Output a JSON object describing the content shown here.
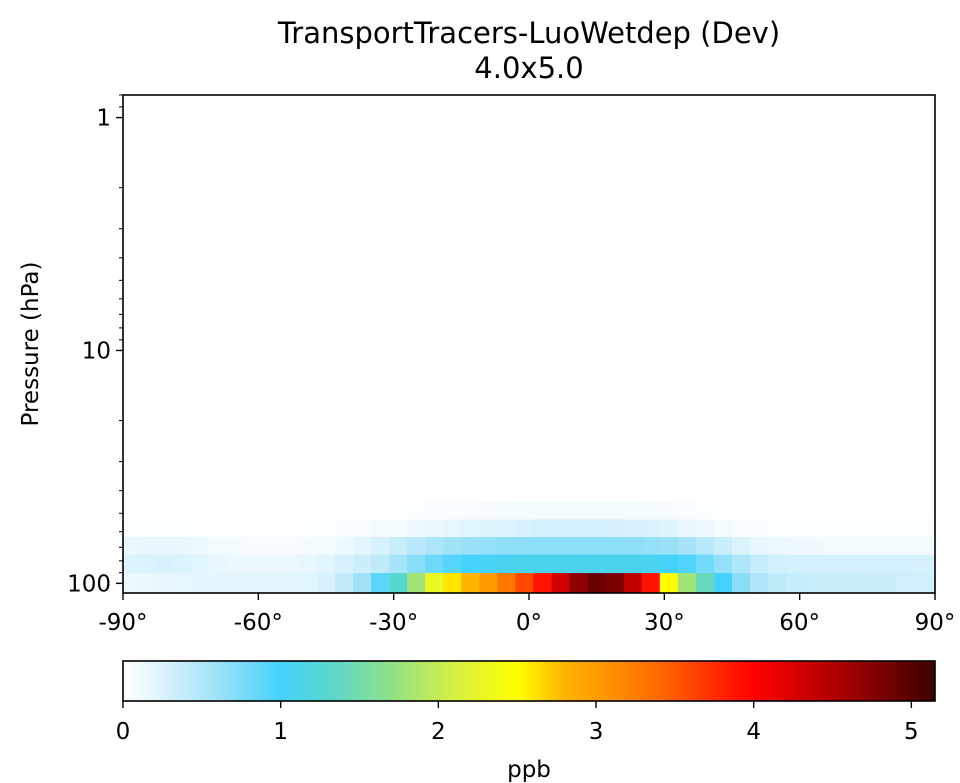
{
  "chart_data": {
    "type": "heatmap",
    "title": "TransportTracers-LuoWetdep (Dev)",
    "subtitle": "4.0x5.0",
    "xlabel": "",
    "ylabel": "Pressure (hPa)",
    "x_ticks": [
      "-90°",
      "-60°",
      "-30°",
      "0°",
      "30°",
      "60°",
      "90°"
    ],
    "x_tick_values": [
      -90,
      -60,
      -30,
      0,
      30,
      60,
      90
    ],
    "xlim": [
      -90,
      90
    ],
    "y_scale": "log",
    "y_inverted": true,
    "y_ticks": [
      "1",
      "10",
      "100"
    ],
    "y_tick_values": [
      1,
      10,
      100
    ],
    "ylim": [
      110,
      0.8
    ],
    "lat_edges": [
      -90,
      -87,
      -83,
      -79,
      -75,
      -71,
      -67,
      -63,
      -59,
      -55,
      -51,
      -47,
      -43,
      -39,
      -35,
      -31,
      -27,
      -23,
      -19,
      -15,
      -11,
      -7,
      -3,
      1,
      5,
      9,
      13,
      17,
      21,
      25,
      29,
      33,
      37,
      41,
      45,
      49,
      53,
      57,
      61,
      65,
      69,
      73,
      77,
      81,
      85,
      89,
      90
    ],
    "pressure_edges": [
      110,
      90,
      75,
      63,
      53,
      44.5
    ],
    "values": [
      [
        0.14,
        0.16,
        0.18,
        0.19,
        0.2,
        0.2,
        0.2,
        0.2,
        0.2,
        0.2,
        0.22,
        0.28,
        0.4,
        0.6,
        0.9,
        1.3,
        1.8,
        2.3,
        2.6,
        2.8,
        3.0,
        3.3,
        3.6,
        3.9,
        4.3,
        4.7,
        4.9,
        4.8,
        4.4,
        3.9,
        2.5,
        1.8,
        1.4,
        1.0,
        0.7,
        0.5,
        0.42,
        0.38,
        0.36,
        0.36,
        0.36,
        0.35,
        0.34,
        0.33,
        0.32,
        0.3
      ],
      [
        0.25,
        0.26,
        0.27,
        0.26,
        0.22,
        0.18,
        0.15,
        0.15,
        0.15,
        0.15,
        0.18,
        0.22,
        0.28,
        0.34,
        0.42,
        0.55,
        0.7,
        0.82,
        0.92,
        1.0,
        1.05,
        1.08,
        1.1,
        1.1,
        1.1,
        1.1,
        1.1,
        1.1,
        1.1,
        1.08,
        1.02,
        0.95,
        0.8,
        0.65,
        0.5,
        0.38,
        0.32,
        0.3,
        0.3,
        0.3,
        0.3,
        0.3,
        0.3,
        0.3,
        0.29,
        0.28
      ],
      [
        0.16,
        0.17,
        0.18,
        0.17,
        0.14,
        0.1,
        0.08,
        0.07,
        0.07,
        0.07,
        0.08,
        0.1,
        0.14,
        0.2,
        0.28,
        0.36,
        0.45,
        0.52,
        0.58,
        0.62,
        0.65,
        0.67,
        0.68,
        0.68,
        0.68,
        0.68,
        0.68,
        0.68,
        0.67,
        0.65,
        0.62,
        0.55,
        0.45,
        0.35,
        0.25,
        0.18,
        0.14,
        0.12,
        0.11,
        0.1,
        0.1,
        0.1,
        0.1,
        0.1,
        0.1,
        0.1
      ],
      [
        0.03,
        0.03,
        0.03,
        0.03,
        0.02,
        0.02,
        0.02,
        0.02,
        0.02,
        0.02,
        0.02,
        0.03,
        0.04,
        0.06,
        0.08,
        0.1,
        0.13,
        0.16,
        0.19,
        0.22,
        0.24,
        0.26,
        0.28,
        0.3,
        0.3,
        0.3,
        0.3,
        0.29,
        0.28,
        0.26,
        0.23,
        0.18,
        0.13,
        0.09,
        0.06,
        0.04,
        0.03,
        0.03,
        0.03,
        0.03,
        0.03,
        0.03,
        0.03,
        0.03,
        0.03,
        0.03
      ],
      [
        0.0,
        0.0,
        0.0,
        0.0,
        0.0,
        0.0,
        0.0,
        0.0,
        0.0,
        0.0,
        0.0,
        0.0,
        0.0,
        0.01,
        0.01,
        0.02,
        0.03,
        0.04,
        0.05,
        0.06,
        0.07,
        0.08,
        0.09,
        0.1,
        0.1,
        0.1,
        0.1,
        0.1,
        0.09,
        0.08,
        0.07,
        0.05,
        0.03,
        0.02,
        0.01,
        0.01,
        0.0,
        0.0,
        0.0,
        0.0,
        0.0,
        0.0,
        0.0,
        0.0,
        0.0,
        0.0
      ]
    ],
    "colorbar": {
      "label": "ppb",
      "min": 0,
      "max": 5.15,
      "ticks": [
        0,
        1,
        2,
        3,
        4,
        5
      ],
      "tick_labels": [
        "0",
        "1",
        "2",
        "3",
        "4",
        "5"
      ],
      "colormap_stops": [
        {
          "v": 0.0,
          "c": "#ffffff"
        },
        {
          "v": 0.2,
          "c": "#e4f6fd"
        },
        {
          "v": 0.6,
          "c": "#9fe1f8"
        },
        {
          "v": 1.0,
          "c": "#44d2fc"
        },
        {
          "v": 1.3,
          "c": "#58d6cf"
        },
        {
          "v": 1.7,
          "c": "#8fe089"
        },
        {
          "v": 2.1,
          "c": "#d7f043"
        },
        {
          "v": 2.5,
          "c": "#ffff00"
        },
        {
          "v": 2.8,
          "c": "#ffb400"
        },
        {
          "v": 3.4,
          "c": "#ff6a00"
        },
        {
          "v": 4.0,
          "c": "#ff0000"
        },
        {
          "v": 4.5,
          "c": "#b30000"
        },
        {
          "v": 5.15,
          "c": "#3d0000"
        }
      ]
    }
  }
}
